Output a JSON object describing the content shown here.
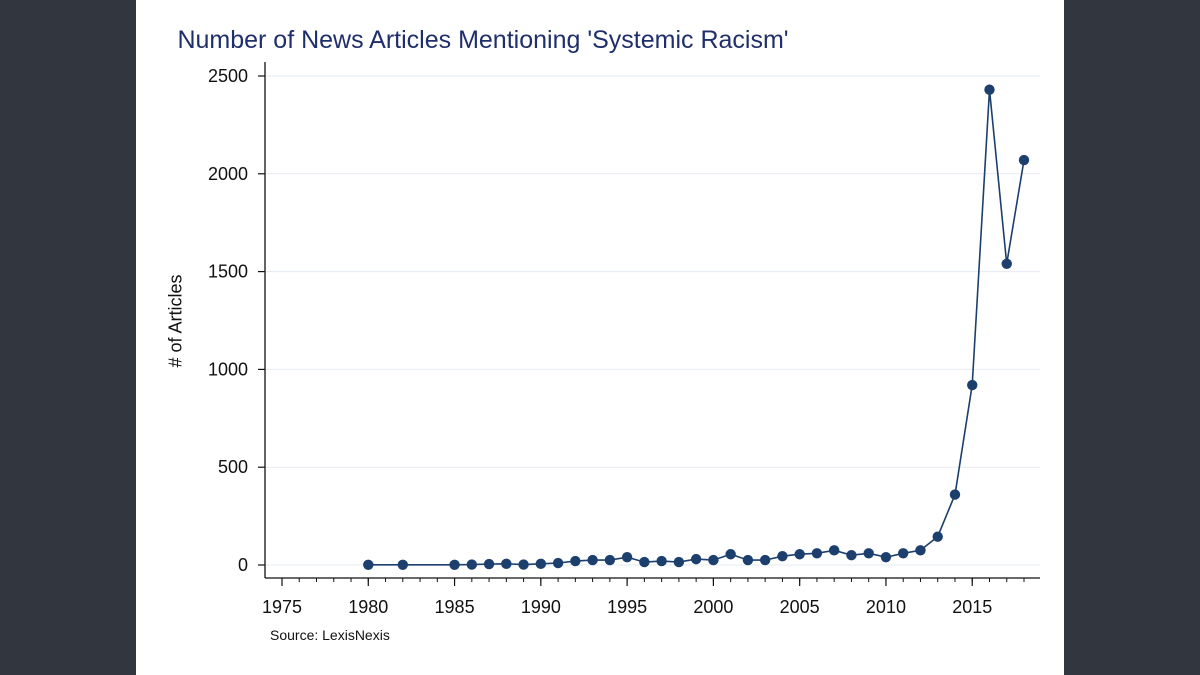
{
  "chart_data": {
    "type": "line",
    "title": "Number of News Articles Mentioning 'Systemic Racism'",
    "xlabel": "",
    "ylabel": "# of Articles",
    "note": "Source: LexisNexis",
    "xlim": [
      1975,
      2018
    ],
    "ylim": [
      0,
      2500
    ],
    "x_ticks": [
      1975,
      1980,
      1985,
      1990,
      1995,
      2000,
      2005,
      2010,
      2015
    ],
    "y_ticks": [
      0,
      500,
      1000,
      1500,
      2000,
      2500
    ],
    "grid": true,
    "markers": true,
    "series": [
      {
        "name": "# of Articles",
        "color": "#1c3f6e",
        "x": [
          1980,
          1982,
          1985,
          1986,
          1987,
          1988,
          1989,
          1990,
          1991,
          1992,
          1993,
          1994,
          1995,
          1996,
          1997,
          1998,
          1999,
          2000,
          2001,
          2002,
          2003,
          2004,
          2005,
          2006,
          2007,
          2008,
          2009,
          2010,
          2011,
          2012,
          2013,
          2014,
          2015,
          2016,
          2017,
          2018
        ],
        "y": [
          1,
          1,
          1,
          2,
          5,
          6,
          2,
          6,
          10,
          20,
          25,
          25,
          40,
          15,
          20,
          15,
          30,
          25,
          55,
          25,
          25,
          45,
          55,
          60,
          75,
          50,
          60,
          40,
          60,
          75,
          145,
          360,
          920,
          2430,
          1540,
          2070
        ]
      }
    ]
  }
}
